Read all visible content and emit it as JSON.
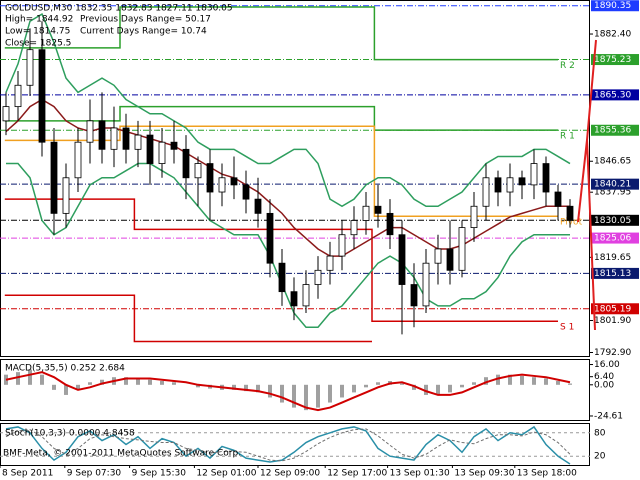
{
  "chart_data": {
    "type": "candlestick",
    "title": "GOLDUSD,M30  1832.35 1832.83 1827.11 1830.05",
    "header": [
      "High= 1844.92",
      "Previous Days Range= 50.17",
      "Low= 1814.75",
      "Current Days Range= 10.74",
      "Close= 1825.5"
    ],
    "footer": "BMF-Meta, © 2001-2011 MetaQuotes Software Corp.",
    "xlim": [
      0,
      48
    ],
    "xticks": [
      {
        "value": 0,
        "label": "8 Sep 2011"
      },
      {
        "value": 5.4,
        "label": "9 Sep 07:30"
      },
      {
        "value": 10.8,
        "label": "9 Sep 15:30"
      },
      {
        "value": 16.2,
        "label": "12 Sep 01:00"
      },
      {
        "value": 21.5,
        "label": "12 Sep 09:00"
      },
      {
        "value": 27.1,
        "label": "12 Sep 17:00"
      },
      {
        "value": 32.3,
        "label": "13 Sep 01:30"
      },
      {
        "value": 37.7,
        "label": "13 Sep 09:30"
      },
      {
        "value": 42.9,
        "label": "13 Sep 18:00"
      }
    ],
    "ylim": [
      1792.2,
      1891.4
    ],
    "yticks": [
      {
        "value": 1882.4,
        "label": "1882.40"
      },
      {
        "value": 1846.65,
        "label": "1846.65"
      },
      {
        "value": 1837.95,
        "label": "1837.95"
      },
      {
        "value": 1819.65,
        "label": "1819.65"
      },
      {
        "value": 1801.9,
        "label": "1801.90"
      },
      {
        "value": 1792.9,
        "label": "1792.90"
      }
    ],
    "levels": [
      {
        "value": 1890.35,
        "label": "1890.35",
        "color": "#1e3cff"
      },
      {
        "value": 1875.23,
        "label": "1875.23",
        "color": "#2ca02c"
      },
      {
        "value": 1865.3,
        "label": "1865.30",
        "color": "#0000a0"
      },
      {
        "value": 1855.36,
        "label": "1855.36",
        "color": "#2ca02c"
      },
      {
        "value": 1840.21,
        "label": "1840.21",
        "color": "#0a1a6e"
      },
      {
        "value": 1830.05,
        "label": "1830.05",
        "color": "#000000"
      },
      {
        "value": 1825.06,
        "label": "1825.06",
        "color": "#e040e0"
      },
      {
        "value": 1815.13,
        "label": "1815.13",
        "color": "#0a1a6e"
      },
      {
        "value": 1805.19,
        "label": "1805.19",
        "color": "#d00000"
      }
    ],
    "open": [
      1858,
      1862,
      1868,
      1878,
      1852,
      1832,
      1842,
      1852,
      1858,
      1850,
      1856,
      1850,
      1854,
      1846,
      1852,
      1850,
      1842,
      1846,
      1838,
      1842,
      1840,
      1836,
      1832,
      1818,
      1810,
      1806,
      1812,
      1816,
      1820,
      1826,
      1830,
      1834,
      1832,
      1826,
      1812,
      1806,
      1818,
      1822,
      1816,
      1828,
      1834,
      1842,
      1838,
      1842,
      1840,
      1846,
      1838,
      1834
    ],
    "high": [
      1866,
      1872,
      1884,
      1886,
      1856,
      1846,
      1856,
      1864,
      1866,
      1862,
      1860,
      1858,
      1858,
      1856,
      1858,
      1854,
      1848,
      1850,
      1846,
      1848,
      1844,
      1842,
      1836,
      1822,
      1814,
      1816,
      1820,
      1824,
      1830,
      1834,
      1838,
      1840,
      1836,
      1830,
      1818,
      1822,
      1826,
      1830,
      1830,
      1838,
      1846,
      1844,
      1846,
      1844,
      1850,
      1848,
      1840,
      1836
    ],
    "low": [
      1854,
      1858,
      1865,
      1848,
      1826,
      1828,
      1838,
      1846,
      1846,
      1845,
      1846,
      1845,
      1840,
      1842,
      1846,
      1836,
      1834,
      1830,
      1834,
      1836,
      1832,
      1828,
      1814,
      1806,
      1802,
      1804,
      1808,
      1812,
      1816,
      1822,
      1826,
      1828,
      1822,
      1798,
      1800,
      1804,
      1812,
      1812,
      1814,
      1824,
      1830,
      1834,
      1834,
      1836,
      1836,
      1834,
      1830,
      1828
    ],
    "close": [
      1862,
      1868,
      1878,
      1852,
      1832,
      1842,
      1852,
      1858,
      1850,
      1856,
      1850,
      1854,
      1846,
      1852,
      1850,
      1842,
      1846,
      1838,
      1842,
      1840,
      1836,
      1832,
      1818,
      1810,
      1806,
      1812,
      1816,
      1820,
      1826,
      1830,
      1834,
      1832,
      1826,
      1812,
      1806,
      1818,
      1822,
      1816,
      1828,
      1834,
      1842,
      1838,
      1842,
      1840,
      1846,
      1838,
      1834,
      1830
    ],
    "series": [
      {
        "color": "#2e9e5e",
        "values": [
          1866,
          1874,
          1886,
          1888,
          1880,
          1870,
          1866,
          1868,
          1870,
          1868,
          1864,
          1862,
          1860,
          1860,
          1858,
          1856,
          1852,
          1850,
          1850,
          1850,
          1848,
          1846,
          1846,
          1848,
          1850,
          1850,
          1846,
          1836,
          1834,
          1836,
          1840,
          1842,
          1842,
          1840,
          1836,
          1834,
          1834,
          1836,
          1838,
          1842,
          1846,
          1848,
          1848,
          1848,
          1850,
          1850,
          1848,
          1846
        ]
      },
      {
        "color": "#2e9e5e",
        "values": [
          1846,
          1846,
          1842,
          1830,
          1826,
          1828,
          1834,
          1840,
          1842,
          1842,
          1844,
          1846,
          1846,
          1844,
          1842,
          1838,
          1834,
          1830,
          1828,
          1826,
          1826,
          1826,
          1820,
          1812,
          1804,
          1800,
          1800,
          1804,
          1806,
          1810,
          1814,
          1818,
          1820,
          1818,
          1814,
          1808,
          1806,
          1806,
          1808,
          1808,
          1810,
          1814,
          1820,
          1824,
          1826,
          1826,
          1826,
          1826
        ]
      },
      {
        "color": "#8b1a1a",
        "values": [
          1855,
          1858,
          1862,
          1864,
          1862,
          1858,
          1856,
          1855,
          1856,
          1856,
          1855,
          1854,
          1853,
          1852,
          1851,
          1849,
          1847,
          1845,
          1843,
          1842,
          1840,
          1838,
          1835,
          1832,
          1828,
          1825,
          1822,
          1820,
          1820,
          1822,
          1824,
          1826,
          1828,
          1828,
          1826,
          1824,
          1822,
          1822,
          1823,
          1825,
          1827,
          1829,
          1831,
          1832,
          1833,
          1834,
          1834,
          1834
        ]
      }
    ],
    "pivots": [
      {
        "name": "R 2",
        "color": "#2ca02c",
        "segments": [
          [
            0.4,
            10,
            1878.5
          ],
          [
            10,
            31.2,
            1890
          ],
          [
            31.2,
            46.5,
            1875.2
          ]
        ]
      },
      {
        "name": "R 1",
        "color": "#2ca02c",
        "segments": [
          [
            0.4,
            10,
            1858
          ],
          [
            10,
            31.2,
            1862
          ],
          [
            31.2,
            46.5,
            1855.4
          ]
        ]
      },
      {
        "name": "Pivot",
        "color": "#f0a020",
        "segments": [
          [
            0.4,
            10,
            1852.5
          ],
          [
            10,
            31.2,
            1856.5
          ],
          [
            31.2,
            46.5,
            1831.2
          ]
        ]
      },
      {
        "name": "S 1",
        "color": "#d00000",
        "segments": [
          [
            0.4,
            11.2,
            1836
          ],
          [
            11.2,
            31,
            1827.5
          ],
          [
            31,
            46.5,
            1801.7
          ]
        ]
      },
      {
        "color": "#d00000",
        "segments": [
          [
            0.4,
            11.2,
            1809
          ],
          [
            11.2,
            31,
            1796
          ]
        ]
      }
    ],
    "macd": {
      "title": "MACD(5,35,5) 0.252 2.684",
      "ylim": [
        -27,
        18
      ],
      "yticks": [
        {
          "value": 16,
          "label": "16.00"
        },
        {
          "value": 6.4,
          "label": "6.40"
        },
        {
          "value": 0,
          "label": "0.00"
        },
        {
          "value": -24.61,
          "label": "-24.61"
        }
      ],
      "histogram_color": "#a0a0a0",
      "signal_color": "#d00000",
      "histogram": [
        8,
        10,
        12,
        8,
        -4,
        -8,
        -4,
        2,
        4,
        6,
        6,
        5,
        4,
        3,
        2,
        0,
        -2,
        -3,
        -4,
        -4,
        -5,
        -6,
        -10,
        -14,
        -18,
        -20,
        -18,
        -14,
        -10,
        -6,
        -2,
        2,
        3,
        1,
        -4,
        -8,
        -8,
        -6,
        -2,
        2,
        6,
        8,
        8,
        7,
        6,
        5,
        3,
        1
      ],
      "signal": [
        4,
        6,
        8,
        10,
        6,
        0,
        -4,
        -2,
        1,
        3,
        5,
        5,
        5,
        4,
        3,
        2,
        0,
        -1,
        -2,
        -3,
        -4,
        -5,
        -7,
        -10,
        -14,
        -18,
        -20,
        -18,
        -14,
        -10,
        -6,
        -2,
        1,
        2,
        -1,
        -5,
        -8,
        -8,
        -6,
        -2,
        2,
        5,
        7,
        8,
        7,
        6,
        4,
        2
      ]
    },
    "stoch": {
      "title": "Stoch(10,3,3) 0.0000 4.8458",
      "ylim": [
        0,
        100
      ],
      "yticks": [
        20,
        80
      ],
      "main_color": "#2a8fa8",
      "signal_color": "#707070",
      "main": [
        90,
        95,
        80,
        40,
        10,
        30,
        70,
        85,
        60,
        75,
        50,
        70,
        40,
        65,
        55,
        20,
        40,
        15,
        45,
        35,
        15,
        10,
        5,
        10,
        30,
        55,
        70,
        80,
        90,
        95,
        85,
        40,
        20,
        15,
        10,
        50,
        75,
        60,
        30,
        70,
        90,
        60,
        80,
        75,
        95,
        50,
        20,
        0
      ],
      "signal": [
        70,
        85,
        88,
        70,
        40,
        25,
        40,
        65,
        75,
        70,
        65,
        62,
        58,
        55,
        55,
        40,
        35,
        28,
        32,
        32,
        30,
        20,
        10,
        8,
        15,
        32,
        52,
        68,
        80,
        88,
        90,
        72,
        48,
        25,
        15,
        25,
        45,
        62,
        55,
        52,
        65,
        75,
        75,
        72,
        82,
        75,
        55,
        25
      ]
    }
  }
}
